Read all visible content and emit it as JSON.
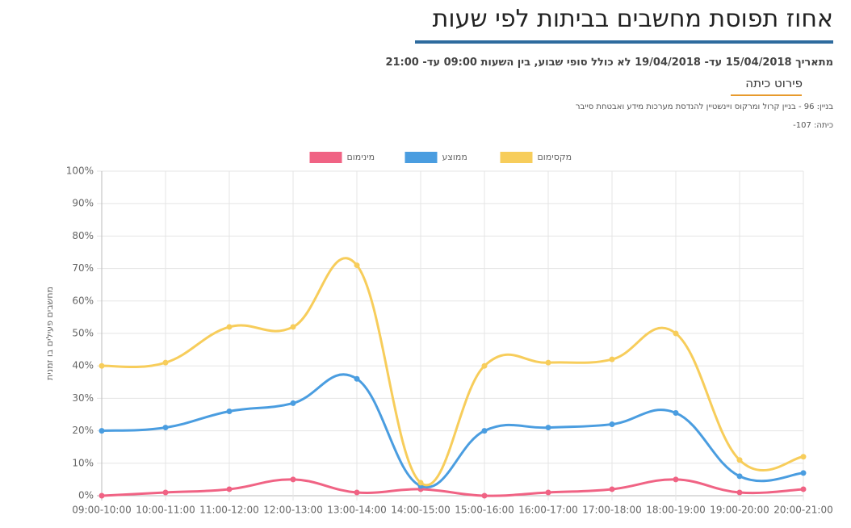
{
  "header": {
    "title": "אחוז תפוסת מחשבים בביתות לפי שעות",
    "subtitle": "מתאריך 15/04/2018 עד- 19/04/2018 לא כולל סופי שבוע, בין השעות 09:00 עד- 21:00",
    "section": "פירוט כיתה",
    "building": "בניין: 96 - בניין קרול ומרקוס ויינשטיין להנדסת מערכות מידע ואבטחת סייבר",
    "classroom": "כיתה: 107-"
  },
  "chart_data": {
    "type": "line",
    "y_label": "מחשבים פעילים בו זמנית",
    "categories": [
      "09:00-10:00",
      "10:00-11:00",
      "11:00-12:00",
      "12:00-13:00",
      "13:00-14:00",
      "14:00-15:00",
      "15:00-16:00",
      "16:00-17:00",
      "17:00-18:00",
      "18:00-19:00",
      "19:00-20:00",
      "20:00-21:00"
    ],
    "series": [
      {
        "name": "מינימום",
        "color": "#f06384",
        "values": [
          0,
          1,
          2,
          5,
          1,
          2,
          0,
          1,
          2,
          5,
          1,
          2
        ]
      },
      {
        "name": "ממוצע",
        "color": "#4a9de0",
        "values": [
          20,
          21,
          26,
          28.5,
          36,
          3,
          20,
          21,
          22,
          25.5,
          6,
          7
        ]
      },
      {
        "name": "מקסימום",
        "color": "#f7cd5b",
        "values": [
          40,
          41,
          52,
          52,
          71,
          4,
          40,
          41,
          42,
          50,
          11,
          12
        ]
      }
    ],
    "ylim": [
      0,
      100
    ],
    "yticks": [
      {
        "value": 0,
        "label": "0%"
      },
      {
        "value": 10,
        "label": "10%"
      },
      {
        "value": 20,
        "label": "20%"
      },
      {
        "value": 30,
        "label": "30%"
      },
      {
        "value": 40,
        "label": "40%"
      },
      {
        "value": 50,
        "label": "50%"
      },
      {
        "value": 60,
        "label": "60%"
      },
      {
        "value": 70,
        "label": "70%"
      },
      {
        "value": 80,
        "label": "80%"
      },
      {
        "value": 90,
        "label": "90%"
      },
      {
        "value": 100,
        "label": "100%"
      }
    ],
    "grid": true
  }
}
